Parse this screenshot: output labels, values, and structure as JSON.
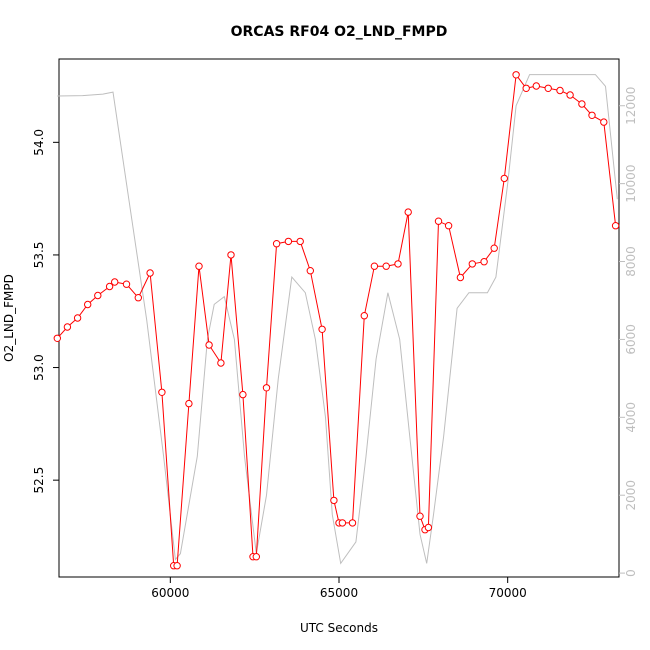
{
  "chart_data": {
    "type": "line",
    "title": "ORCAS RF04 O2_LND_FMPD",
    "xlabel": "UTC Seconds",
    "ylabel": "O2_LND_FMPD",
    "xlim": [
      56700,
      73300
    ],
    "ylim": [
      52.07,
      54.37
    ],
    "y2lim": [
      -100,
      13200
    ],
    "x_ticks": [
      60000,
      65000,
      70000
    ],
    "x_tick_labels": [
      "60000",
      "65000",
      "70000"
    ],
    "y_ticks": [
      52.5,
      53.0,
      53.5,
      54.0
    ],
    "y_tick_labels": [
      "52.5",
      "53.0",
      "53.5",
      "54.0"
    ],
    "y2_ticks": [
      0,
      2000,
      4000,
      6000,
      8000,
      10000,
      12000
    ],
    "y2_tick_labels": [
      "0",
      "2000",
      "4000",
      "6000",
      "8000",
      "10000",
      "12000"
    ],
    "grid": false,
    "series": [
      {
        "axis": "left",
        "color": "#ff0000",
        "marker": "open-circle",
        "points": [
          [
            56650,
            53.13
          ],
          [
            56950,
            53.18
          ],
          [
            57250,
            53.22
          ],
          [
            57550,
            53.28
          ],
          [
            57850,
            53.32
          ],
          [
            58200,
            53.36
          ],
          [
            58350,
            53.38
          ],
          [
            58700,
            53.37
          ],
          [
            59050,
            53.31
          ],
          [
            59400,
            53.42
          ],
          [
            59750,
            52.89
          ],
          [
            60100,
            52.12
          ],
          [
            60200,
            52.12
          ],
          [
            60550,
            52.84
          ],
          [
            60850,
            53.45
          ],
          [
            61150,
            53.1
          ],
          [
            61500,
            53.02
          ],
          [
            61800,
            53.5
          ],
          [
            62150,
            52.88
          ],
          [
            62450,
            52.16
          ],
          [
            62550,
            52.16
          ],
          [
            62850,
            52.91
          ],
          [
            63150,
            53.55
          ],
          [
            63500,
            53.56
          ],
          [
            63850,
            53.56
          ],
          [
            64150,
            53.43
          ],
          [
            64500,
            53.17
          ],
          [
            64850,
            52.41
          ],
          [
            65000,
            52.31
          ],
          [
            65100,
            52.31
          ],
          [
            65400,
            52.31
          ],
          [
            65750,
            53.23
          ],
          [
            66050,
            53.45
          ],
          [
            66400,
            53.45
          ],
          [
            66750,
            53.46
          ],
          [
            67050,
            53.69
          ],
          [
            67400,
            52.34
          ],
          [
            67550,
            52.28
          ],
          [
            67650,
            52.29
          ],
          [
            67950,
            53.65
          ],
          [
            68250,
            53.63
          ],
          [
            68600,
            53.4
          ],
          [
            68950,
            53.46
          ],
          [
            69300,
            53.47
          ],
          [
            69600,
            53.53
          ],
          [
            69900,
            53.84
          ],
          [
            70250,
            54.3
          ],
          [
            70550,
            54.24
          ],
          [
            70850,
            54.25
          ],
          [
            71200,
            54.24
          ],
          [
            71550,
            54.23
          ],
          [
            71850,
            54.21
          ],
          [
            72200,
            54.17
          ],
          [
            72500,
            54.12
          ],
          [
            72850,
            54.09
          ],
          [
            73200,
            53.63
          ]
        ]
      },
      {
        "axis": "right",
        "color": "#bebebe",
        "marker": "none",
        "points": [
          [
            56650,
            12250
          ],
          [
            57400,
            12260
          ],
          [
            58000,
            12300
          ],
          [
            58300,
            12350
          ],
          [
            58700,
            10000
          ],
          [
            59300,
            6500
          ],
          [
            59800,
            3000
          ],
          [
            60150,
            350
          ],
          [
            60300,
            500
          ],
          [
            60800,
            3000
          ],
          [
            61100,
            6000
          ],
          [
            61300,
            6900
          ],
          [
            61600,
            7100
          ],
          [
            61900,
            6000
          ],
          [
            62200,
            3000
          ],
          [
            62550,
            500
          ],
          [
            62850,
            2000
          ],
          [
            63200,
            5000
          ],
          [
            63600,
            7600
          ],
          [
            64000,
            7200
          ],
          [
            64300,
            6000
          ],
          [
            64600,
            4000
          ],
          [
            64800,
            1500
          ],
          [
            65050,
            250
          ],
          [
            65500,
            800
          ],
          [
            65800,
            3000
          ],
          [
            66100,
            5500
          ],
          [
            66450,
            7200
          ],
          [
            66800,
            6000
          ],
          [
            67100,
            3500
          ],
          [
            67400,
            1000
          ],
          [
            67600,
            250
          ],
          [
            67800,
            1500
          ],
          [
            68100,
            3500
          ],
          [
            68500,
            6800
          ],
          [
            68850,
            7200
          ],
          [
            69400,
            7200
          ],
          [
            69650,
            7600
          ],
          [
            70000,
            10000
          ],
          [
            70250,
            12000
          ],
          [
            70650,
            12800
          ],
          [
            72600,
            12800
          ],
          [
            72900,
            12500
          ],
          [
            73250,
            9600
          ]
        ]
      }
    ]
  }
}
